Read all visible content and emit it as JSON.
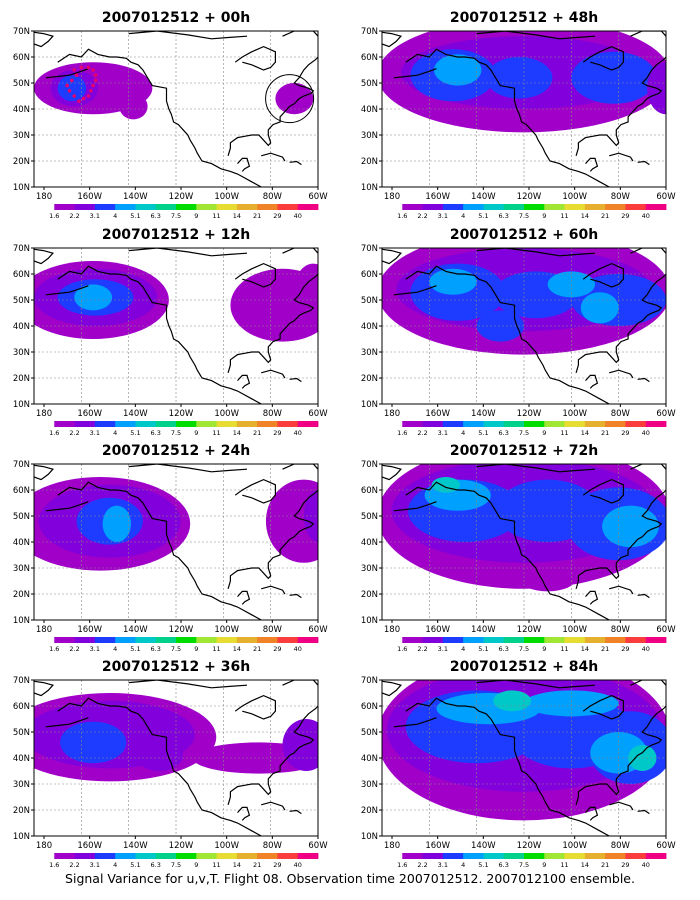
{
  "caption": "Signal Variance for u,v,T. Flight 08. Observation time 2007012512. 2007012100 ensemble.",
  "lon_ticks": [
    "180",
    "160W",
    "140W",
    "120W",
    "100W",
    "80W",
    "60W"
  ],
  "lat_ticks": [
    "70N",
    "60N",
    "50N",
    "40N",
    "30N",
    "20N",
    "10N"
  ],
  "colorbar": {
    "labels": [
      "1.6",
      "2.2",
      "3.1",
      "4",
      "5.1",
      "6.3",
      "7.5",
      "9",
      "11",
      "14",
      "21",
      "29",
      "40"
    ],
    "colors": [
      "#ffffff",
      "#a000c8",
      "#8200dc",
      "#1e3cff",
      "#00a0ff",
      "#00c8c8",
      "#00d28c",
      "#00dc00",
      "#a0e632",
      "#e6dc32",
      "#e6af2d",
      "#f08228",
      "#fa3c3c",
      "#f00082"
    ]
  },
  "panels": [
    {
      "title": "2007012512 + 00h"
    },
    {
      "title": "2007012512 + 12h"
    },
    {
      "title": "2007012512 + 24h"
    },
    {
      "title": "2007012512 + 36h"
    },
    {
      "title": "2007012512 + 48h"
    },
    {
      "title": "2007012512 + 60h"
    },
    {
      "title": "2007012512 + 72h"
    },
    {
      "title": "2007012512 + 84h"
    }
  ],
  "icons": {
    "marker-ring": "observation-area-circle-icon",
    "flight-track": "flight-track-dots-icon"
  }
}
